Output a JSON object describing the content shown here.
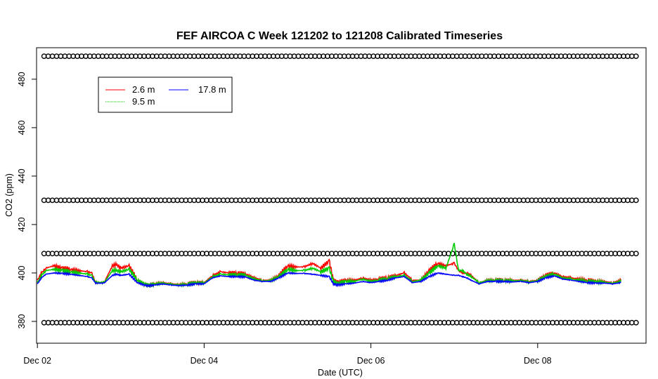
{
  "chart_data": {
    "type": "line",
    "title": "FEF AIRCOA C  Week 121202 to 121208  Calibrated Timeseries",
    "xlabel": "Date (UTC)",
    "ylabel": "CO2 (ppm)",
    "x_range_days": [
      -0.01,
      7.3
    ],
    "ylim": [
      371,
      493
    ],
    "x_ticks": [
      {
        "day": 0,
        "label": "Dec 02"
      },
      {
        "day": 2,
        "label": "Dec 04"
      },
      {
        "day": 4,
        "label": "Dec 06"
      },
      {
        "day": 6,
        "label": "Dec 08"
      }
    ],
    "y_ticks": [
      380,
      400,
      420,
      440,
      460,
      480
    ],
    "grid": false,
    "legend": {
      "placement": "top-left",
      "entries": [
        {
          "label": "2.6 m",
          "color": "#ff0000"
        },
        {
          "label": "9.5 m",
          "color": "#00cc00"
        },
        {
          "label": "17.8 m",
          "color": "#0000ff"
        }
      ]
    },
    "series": [
      {
        "name": "2.6 m",
        "color": "#ff0000",
        "x": [
          0.0,
          0.05,
          0.1,
          0.2,
          0.3,
          0.4,
          0.5,
          0.6,
          0.65,
          0.7,
          0.8,
          0.9,
          0.95,
          1.0,
          1.1,
          1.2,
          1.3,
          1.35,
          1.4,
          1.5,
          1.6,
          1.7,
          1.8,
          1.9,
          2.0,
          2.1,
          2.2,
          2.3,
          2.4,
          2.5,
          2.6,
          2.7,
          2.8,
          2.9,
          3.0,
          3.1,
          3.2,
          3.3,
          3.4,
          3.5,
          3.55,
          3.6,
          3.7,
          3.8,
          3.9,
          4.0,
          4.1,
          4.2,
          4.3,
          4.4,
          4.5,
          4.6,
          4.7,
          4.8,
          4.9,
          5.0,
          5.05,
          5.1,
          5.15,
          5.2,
          5.3,
          5.4,
          5.5,
          5.6,
          5.7,
          5.8,
          5.9,
          6.0,
          6.1,
          6.2,
          6.3,
          6.4,
          6.5,
          6.6,
          6.7,
          6.8,
          6.9,
          7.0
        ],
        "y": [
          397,
          400,
          402,
          403,
          402,
          401.5,
          401,
          400.5,
          400,
          396,
          396,
          403,
          403.5,
          402,
          403,
          397,
          395,
          395,
          395.5,
          396,
          395.5,
          395.2,
          395.5,
          396,
          396,
          399,
          400.5,
          400,
          400,
          399.5,
          398,
          397,
          397,
          399,
          403,
          402.5,
          402.5,
          404,
          402,
          405,
          397,
          396,
          397,
          397,
          398,
          397,
          397.5,
          398,
          399,
          400,
          397,
          397,
          401,
          404,
          403,
          404,
          401,
          400,
          400,
          399,
          396,
          397,
          397,
          397,
          397,
          397,
          396.5,
          397,
          399,
          400,
          398.5,
          398,
          397.5,
          397,
          396.5,
          396.5,
          396,
          397
        ]
      },
      {
        "name": "9.5 m",
        "color": "#00cc00",
        "x": [
          0.0,
          0.05,
          0.1,
          0.2,
          0.3,
          0.4,
          0.5,
          0.6,
          0.65,
          0.7,
          0.8,
          0.9,
          0.95,
          1.0,
          1.1,
          1.2,
          1.3,
          1.35,
          1.4,
          1.5,
          1.6,
          1.7,
          1.8,
          1.9,
          2.0,
          2.1,
          2.2,
          2.3,
          2.4,
          2.5,
          2.6,
          2.7,
          2.8,
          2.9,
          3.0,
          3.1,
          3.2,
          3.3,
          3.4,
          3.5,
          3.55,
          3.6,
          3.7,
          3.8,
          3.9,
          4.0,
          4.1,
          4.2,
          4.3,
          4.4,
          4.5,
          4.6,
          4.7,
          4.8,
          4.9,
          5.0,
          5.05,
          5.1,
          5.15,
          5.2,
          5.3,
          5.4,
          5.5,
          5.6,
          5.7,
          5.8,
          5.9,
          6.0,
          6.1,
          6.2,
          6.3,
          6.4,
          6.5,
          6.6,
          6.7,
          6.8,
          6.9,
          7.0
        ],
        "y": [
          396,
          399,
          401,
          401.5,
          401,
          400.5,
          400,
          399.5,
          399,
          396,
          396,
          401,
          401,
          400.5,
          401.5,
          397,
          395,
          395,
          395.3,
          395.8,
          395.3,
          395,
          395.3,
          395.8,
          395.8,
          398.5,
          399.5,
          399.2,
          399.2,
          399,
          397.5,
          396.8,
          396.8,
          398.5,
          401.5,
          401,
          401,
          402,
          400.5,
          402,
          396.5,
          395.5,
          396.5,
          396.5,
          397.5,
          396.5,
          397,
          397.5,
          398.5,
          399,
          396.5,
          397,
          400,
          403,
          402,
          412,
          401,
          401,
          399.5,
          398.5,
          396,
          396.8,
          396.8,
          396.8,
          396.8,
          396.8,
          396.3,
          396.8,
          398.5,
          399.5,
          398,
          397.5,
          397,
          396.5,
          396.3,
          396.2,
          395.8,
          396.5
        ]
      },
      {
        "name": "17.8 m",
        "color": "#0000ff",
        "x": [
          0.0,
          0.05,
          0.1,
          0.2,
          0.3,
          0.4,
          0.5,
          0.6,
          0.65,
          0.7,
          0.8,
          0.9,
          0.95,
          1.0,
          1.1,
          1.2,
          1.3,
          1.35,
          1.4,
          1.5,
          1.6,
          1.7,
          1.8,
          1.9,
          2.0,
          2.1,
          2.2,
          2.3,
          2.4,
          2.5,
          2.6,
          2.7,
          2.8,
          2.9,
          3.0,
          3.1,
          3.2,
          3.3,
          3.4,
          3.5,
          3.55,
          3.6,
          3.7,
          3.8,
          3.9,
          4.0,
          4.1,
          4.2,
          4.3,
          4.4,
          4.5,
          4.6,
          4.7,
          4.8,
          4.9,
          5.0,
          5.05,
          5.1,
          5.15,
          5.2,
          5.3,
          5.4,
          5.5,
          5.6,
          5.7,
          5.8,
          5.9,
          6.0,
          6.1,
          6.2,
          6.3,
          6.4,
          6.5,
          6.6,
          6.7,
          6.8,
          6.9,
          7.0
        ],
        "y": [
          395.5,
          398,
          399.5,
          400,
          399.8,
          399.5,
          399,
          398.5,
          398,
          395.8,
          395.8,
          399,
          399.5,
          399,
          399.5,
          396,
          394.8,
          394.8,
          395,
          395.5,
          395,
          394.8,
          395,
          395.5,
          395.5,
          398,
          398.8,
          398.5,
          398.5,
          398.3,
          397,
          396.5,
          396.5,
          398,
          400,
          399.8,
          399.8,
          399.5,
          399,
          398.5,
          395.5,
          395,
          395.5,
          395.8,
          396.5,
          396,
          396.5,
          397,
          398,
          398.5,
          396,
          396.5,
          398.5,
          400,
          399.5,
          399,
          399,
          398.5,
          398,
          397,
          395.5,
          396.5,
          396.5,
          396.5,
          396.3,
          396.5,
          396,
          396.5,
          398,
          398.8,
          397.5,
          397,
          396.5,
          396,
          395.8,
          395.8,
          395.5,
          396
        ]
      },
      {
        "name": "",
        "type": "scatter",
        "marker": "open-circle",
        "color": "#000000",
        "x_start": 0.08,
        "x_end": 7.2,
        "spacing_days": 0.05,
        "levels_y": [
          489.5,
          430,
          408,
          379.5
        ]
      }
    ]
  }
}
